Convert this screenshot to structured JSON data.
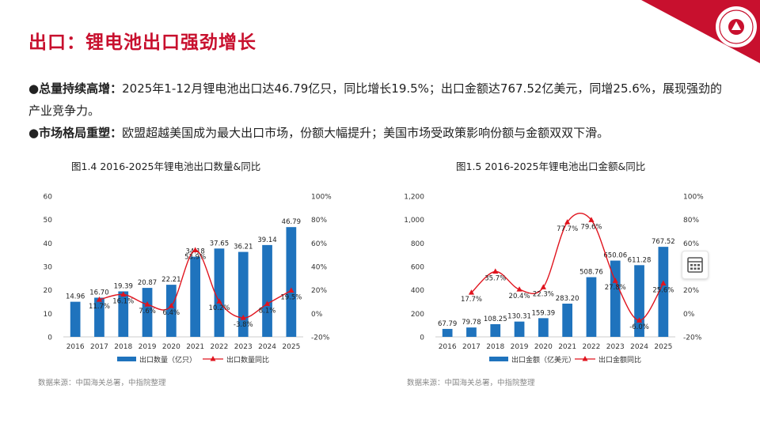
{
  "page": {
    "title": "出口：锂电池出口强劲增长",
    "bullets": [
      {
        "label": "总量持续高增：",
        "text": "2025年1-12月锂电池出口达46.79亿只，同比增长19.5%；出口金额达767.52亿美元，同增25.6%，展现强劲的产业竞争力。"
      },
      {
        "label": "市场格局重塑：",
        "text": "欧盟超越美国成为最大出口市场，份额大幅提升；美国市场受政策影响份额与金额双双下滑。"
      }
    ]
  },
  "colors": {
    "accent": "#c8102e",
    "bar": "#1f73bd",
    "line": "#e0141e",
    "axis": "#cccccc",
    "text": "#333333"
  },
  "chart_data": [
    {
      "type": "bar",
      "title": "图1.4 2016-2025年锂电池出口数量&同比",
      "source": "数据来源：中国海关总署，中指院整理",
      "categories": [
        "2016",
        "2017",
        "2018",
        "2019",
        "2020",
        "2021",
        "2022",
        "2023",
        "2024",
        "2025"
      ],
      "series": [
        {
          "name": "出口数量（亿只）",
          "kind": "bar",
          "axis": "left",
          "values": [
            14.96,
            16.7,
            19.39,
            20.87,
            22.21,
            34.18,
            37.65,
            36.21,
            39.14,
            46.79
          ],
          "labels": [
            "14.96",
            "16.70",
            "19.39",
            "20.87",
            "22.21",
            "34.18",
            "37.65",
            "36.21",
            "39.14",
            "46.79"
          ]
        },
        {
          "name": "出口数量同比",
          "kind": "line",
          "axis": "right",
          "values": [
            null,
            11.7,
            16.1,
            7.6,
            6.4,
            53.9,
            10.2,
            -3.8,
            8.1,
            19.5
          ],
          "labels": [
            "",
            "11.7%",
            "16.1%",
            "7.6%",
            "6.4%",
            "53.9%",
            "10.2%",
            "-3.8%",
            "8.1%",
            "19.5%"
          ]
        }
      ],
      "y_left": {
        "min": 0,
        "max": 60,
        "ticks": [
          "0",
          "10",
          "20",
          "30",
          "40",
          "50",
          "60"
        ]
      },
      "y_right": {
        "min": -20,
        "max": 100,
        "ticks": [
          "-20%",
          "0%",
          "20%",
          "40%",
          "60%",
          "80%",
          "100%"
        ]
      },
      "legend": "bottom"
    },
    {
      "type": "bar",
      "title": "图1.5 2016-2025年锂电池出口金额&同比",
      "source": "数据来源：中国海关总署，中指院整理",
      "categories": [
        "2016",
        "2017",
        "2018",
        "2019",
        "2020",
        "2021",
        "2022",
        "2023",
        "2024",
        "2025"
      ],
      "series": [
        {
          "name": "出口金额（亿美元）",
          "kind": "bar",
          "axis": "left",
          "values": [
            67.79,
            79.78,
            108.25,
            130.31,
            159.39,
            283.2,
            508.76,
            650.06,
            611.28,
            767.52
          ],
          "labels": [
            "67.79",
            "79.78",
            "108.25",
            "130.31",
            "159.39",
            "283.20",
            "508.76",
            "650.06",
            "611.28",
            "767.52"
          ]
        },
        {
          "name": "出口金额同比",
          "kind": "line",
          "axis": "right",
          "values": [
            null,
            17.7,
            35.7,
            20.4,
            22.3,
            77.7,
            79.6,
            27.8,
            -6.0,
            25.6
          ],
          "labels": [
            "",
            "17.7%",
            "35.7%",
            "20.4%",
            "22.3%",
            "77.7%",
            "79.6%",
            "27.8%",
            "-6.0%",
            "25.6%"
          ]
        }
      ],
      "y_left": {
        "min": 0,
        "max": 1200,
        "ticks": [
          "0",
          "200",
          "400",
          "600",
          "800",
          "1,000",
          "1,200"
        ]
      },
      "y_right": {
        "min": -20,
        "max": 100,
        "ticks": [
          "-20%",
          "0%",
          "20%",
          "40%",
          "60%",
          "80%",
          "100%"
        ]
      },
      "legend": "bottom"
    }
  ]
}
